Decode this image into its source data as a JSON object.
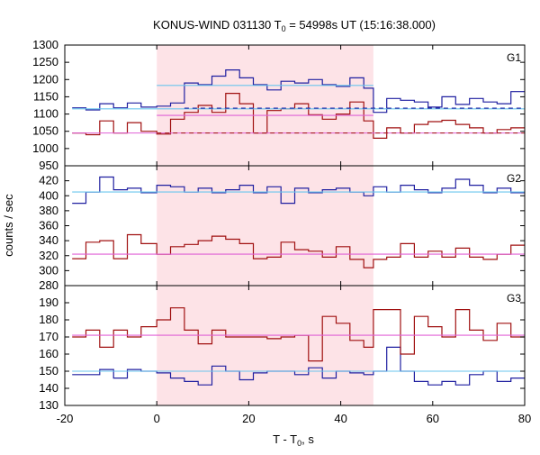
{
  "chart_data": {
    "type": "line",
    "title_main": "KONUS-WIND 031130 T",
    "title_sub": "0",
    "title_rest": " = 54998s UT (15:16:38.000)",
    "xlabel_main": "T - T",
    "xlabel_sub": "0",
    "xlabel_rest": ", s",
    "ylabel": "counts / sec",
    "xlim": [
      -20,
      80
    ],
    "xticks": [
      "-20",
      "0",
      "20",
      "40",
      "60",
      "80"
    ],
    "highlight": {
      "x0": 0,
      "x1": 47.1
    },
    "colors": {
      "hard": "#1f1fa0",
      "soft": "#a01010",
      "hard_bg": "#6ac6ee",
      "soft_bg": "#e060d6",
      "highlight": "#fde3e7"
    },
    "panels": [
      {
        "label": "G1",
        "ylim": [
          950,
          1300
        ],
        "yticks": [
          "1300",
          "1250",
          "1200",
          "1150",
          "1100",
          "1050",
          "1000",
          "950"
        ],
        "series": [
          {
            "role": "hard",
            "bin_edges": [
              -18.4,
              -15.4,
              -12.4,
              -9.4,
              -6.4,
              -3.4,
              0,
              3,
              6,
              9,
              12,
              15,
              18,
              21,
              24,
              27,
              30,
              33,
              36,
              39,
              42,
              45,
              47.1,
              50,
              53,
              56,
              59,
              62,
              65,
              68,
              71,
              74,
              77,
              80
            ],
            "values": [
              1118,
              1112,
              1130,
              1118,
              1132,
              1120,
              1123,
              1132,
              1190,
              1185,
              1210,
              1228,
              1205,
              1185,
              1170,
              1195,
              1190,
              1200,
              1185,
              1180,
              1205,
              1175,
              1105,
              1145,
              1140,
              1135,
              1120,
              1150,
              1128,
              1145,
              1135,
              1130,
              1165
            ]
          },
          {
            "role": "soft",
            "bin_edges": [
              -18.4,
              -15.4,
              -12.4,
              -9.4,
              -6.4,
              -3.4,
              0,
              3,
              6,
              9,
              12,
              15,
              18,
              21,
              24,
              27,
              30,
              33,
              36,
              39,
              42,
              45,
              47.1,
              50,
              53,
              56,
              59,
              62,
              65,
              68,
              71,
              74,
              77,
              80
            ],
            "values": [
              1045,
              1040,
              1080,
              1045,
              1075,
              1050,
              1042,
              1085,
              1105,
              1125,
              1105,
              1160,
              1130,
              1045,
              1110,
              1115,
              1130,
              1098,
              1085,
              1100,
              1135,
              1080,
              1030,
              1060,
              1045,
              1070,
              1078,
              1082,
              1070,
              1060,
              1045,
              1055,
              1060
            ]
          },
          {
            "role": "hard_bg",
            "x": [
              -18.4,
              80
            ],
            "y": [
              1115,
              1115
            ]
          },
          {
            "role": "soft_bg",
            "x": [
              -18.4,
              80
            ],
            "y": [
              1045,
              1045
            ]
          },
          {
            "role": "hard_bg",
            "x": [
              0,
              47.1
            ],
            "y": [
              1183,
              1183
            ]
          },
          {
            "role": "soft_bg",
            "x": [
              0,
              47.1
            ],
            "y": [
              1096,
              1096
            ]
          }
        ],
        "dashed": [
          {
            "role": "hard",
            "x": [
              6,
              80
            ],
            "y": [
              1117,
              1117
            ]
          },
          {
            "role": "soft",
            "x": [
              0,
              80
            ],
            "y": [
              1045,
              1045
            ]
          }
        ]
      },
      {
        "label": "G2",
        "ylim": [
          280,
          440
        ],
        "yticks": [
          "420",
          "400",
          "380",
          "360",
          "340",
          "320",
          "300",
          "280"
        ],
        "series": [
          {
            "role": "hard",
            "bin_edges": [
              -18.4,
              -15.4,
              -12.4,
              -9.4,
              -6.4,
              -3.4,
              0,
              3,
              6,
              9,
              12,
              15,
              18,
              21,
              24,
              27,
              30,
              33,
              36,
              39,
              42,
              45,
              47.1,
              50,
              53,
              56,
              59,
              62,
              65,
              68,
              71,
              74,
              77,
              80
            ],
            "values": [
              390,
              405,
              425,
              408,
              410,
              404,
              414,
              412,
              405,
              410,
              404,
              408,
              414,
              404,
              412,
              390,
              410,
              404,
              408,
              410,
              405,
              400,
              412,
              405,
              414,
              408,
              404,
              410,
              422,
              414,
              404,
              410,
              404
            ]
          },
          {
            "role": "soft",
            "bin_edges": [
              -18.4,
              -15.4,
              -12.4,
              -9.4,
              -6.4,
              -3.4,
              0,
              3,
              6,
              9,
              12,
              15,
              18,
              21,
              24,
              27,
              30,
              33,
              36,
              39,
              42,
              45,
              47.1,
              50,
              53,
              56,
              59,
              62,
              65,
              68,
              71,
              74,
              77,
              80
            ],
            "values": [
              316,
              338,
              340,
              316,
              348,
              336,
              322,
              332,
              335,
              340,
              346,
              342,
              336,
              316,
              318,
              338,
              328,
              326,
              318,
              332,
              315,
              304,
              315,
              318,
              336,
              318,
              326,
              318,
              330,
              318,
              315,
              322,
              334
            ]
          },
          {
            "role": "hard_bg",
            "x": [
              -18.4,
              80
            ],
            "y": [
              405,
              405
            ]
          },
          {
            "role": "soft_bg",
            "x": [
              -18.4,
              80
            ],
            "y": [
              322,
              322
            ]
          }
        ],
        "dashed": []
      },
      {
        "label": "G3",
        "ylim": [
          130,
          200
        ],
        "yticks": [
          "190",
          "180",
          "170",
          "160",
          "150",
          "140",
          "130"
        ],
        "series": [
          {
            "role": "hard",
            "bin_edges": [
              -18.4,
              -15.4,
              -12.4,
              -9.4,
              -6.4,
              -3.4,
              0,
              3,
              6,
              9,
              12,
              15,
              18,
              21,
              24,
              27,
              30,
              33,
              36,
              39,
              42,
              45,
              47.1,
              50,
              53,
              56,
              59,
              62,
              65,
              68,
              71,
              74,
              77,
              80
            ],
            "values": [
              148,
              148,
              151,
              146,
              151,
              150,
              149,
              146,
              144,
              142,
              153,
              150,
              145,
              149,
              150,
              150,
              148,
              152,
              146,
              150,
              149,
              148,
              150,
              164,
              150,
              144,
              142,
              144,
              142,
              148,
              150,
              144,
              146
            ]
          },
          {
            "role": "soft",
            "bin_edges": [
              -18.4,
              -15.4,
              -12.4,
              -9.4,
              -6.4,
              -3.4,
              0,
              3,
              6,
              9,
              12,
              15,
              18,
              21,
              24,
              27,
              30,
              33,
              36,
              39,
              42,
              45,
              47.1,
              50,
              53,
              56,
              59,
              62,
              65,
              68,
              71,
              74,
              77,
              80
            ],
            "values": [
              170,
              174,
              164,
              174,
              170,
              176,
              180,
              187,
              174,
              166,
              174,
              170,
              170,
              170,
              169,
              170,
              171,
              156,
              182,
              178,
              168,
              164,
              186,
              186,
              160,
              182,
              176,
              170,
              186,
              174,
              168,
              178,
              170
            ]
          },
          {
            "role": "hard_bg",
            "x": [
              -18.4,
              80
            ],
            "y": [
              150,
              150
            ]
          },
          {
            "role": "soft_bg",
            "x": [
              -18.4,
              80
            ],
            "y": [
              171,
              171
            ]
          }
        ],
        "dashed": []
      }
    ]
  }
}
